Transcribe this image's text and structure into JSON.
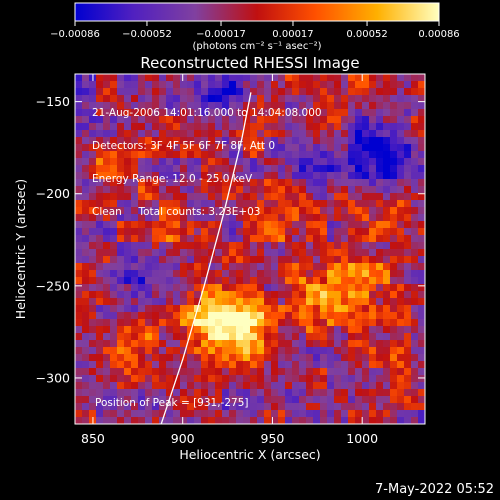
{
  "chart_data": {
    "type": "heatmap",
    "title": "Reconstructed RHESSI Image",
    "xlabel": "Heliocentric X (arcsec)",
    "ylabel": "Heliocentric Y (arcsec)",
    "xlim": [
      840,
      1035
    ],
    "ylim": [
      -325,
      -135
    ],
    "x_ticks": [
      850,
      900,
      950,
      1000
    ],
    "x_tick_labels": [
      "850",
      "900",
      "950",
      "1000"
    ],
    "y_ticks": [
      -150,
      -200,
      -250,
      -300
    ],
    "y_tick_labels": [
      "−150",
      "−200",
      "−250",
      "−300"
    ],
    "colorbar": {
      "range": [
        -0.00086,
        0.00086
      ],
      "tick_values": [
        -0.00086,
        -0.00052,
        -0.00017,
        0.00017,
        0.00052,
        0.00086
      ],
      "tick_labels": [
        "−0.00086",
        "−0.00052",
        "−0.00017",
        "0.00017",
        "0.00052",
        "0.00086"
      ],
      "unit_label": "(photons cm⁻² s⁻¹ asec⁻²)",
      "colors": [
        "#0000d0",
        "#5020c0",
        "#8040a0",
        "#c01010",
        "#ff5000",
        "#ffb000",
        "#ffffc0"
      ]
    },
    "peak": [
      931,
      -275
    ],
    "bright_regions": [
      {
        "x": 932,
        "y": -277,
        "value": 0.00086
      },
      {
        "x": 917,
        "y": -268,
        "value": 0.0006
      },
      {
        "x": 975,
        "y": -258,
        "value": 0.00055
      },
      {
        "x": 1000,
        "y": -245,
        "value": 0.0004
      },
      {
        "x": 865,
        "y": -185,
        "value": 0.0004
      },
      {
        "x": 895,
        "y": -220,
        "value": 0.00035
      },
      {
        "x": 870,
        "y": -275,
        "value": 0.00035
      },
      {
        "x": 955,
        "y": -215,
        "value": 0.0003
      },
      {
        "x": 1010,
        "y": -290,
        "value": 0.0003
      },
      {
        "x": 935,
        "y": -160,
        "value": 0.00025
      },
      {
        "x": 990,
        "y": -150,
        "value": 0.0002
      },
      {
        "x": 1015,
        "y": -205,
        "value": 0.00025
      }
    ],
    "dark_regions": [
      {
        "x": 920,
        "y": -148,
        "value": -0.0007
      },
      {
        "x": 975,
        "y": -185,
        "value": -0.0006
      },
      {
        "x": 1015,
        "y": -185,
        "value": -0.0006
      },
      {
        "x": 875,
        "y": -253,
        "value": -0.0006
      },
      {
        "x": 1005,
        "y": -168,
        "value": -0.0005
      }
    ],
    "limb_curve": [
      [
        888,
        -325
      ],
      [
        900,
        -290
      ],
      [
        912,
        -250
      ],
      [
        923,
        -210
      ],
      [
        933,
        -170
      ],
      [
        938,
        -145
      ]
    ],
    "grid": false
  },
  "info": {
    "line1": "21-Aug-2006 14:01:16.000 to 14:04:08.000",
    "line2": "Detectors: 3F 4F 5F 6F 7F 8F, Att 0",
    "line3": "Energy Range: 12.0 - 25.0 keV",
    "line4": "Clean     Total counts: 3.23E+03",
    "peak_text": "Position of Peak = [931,-275]"
  },
  "footer": {
    "date": "7-May-2022 05:52"
  }
}
